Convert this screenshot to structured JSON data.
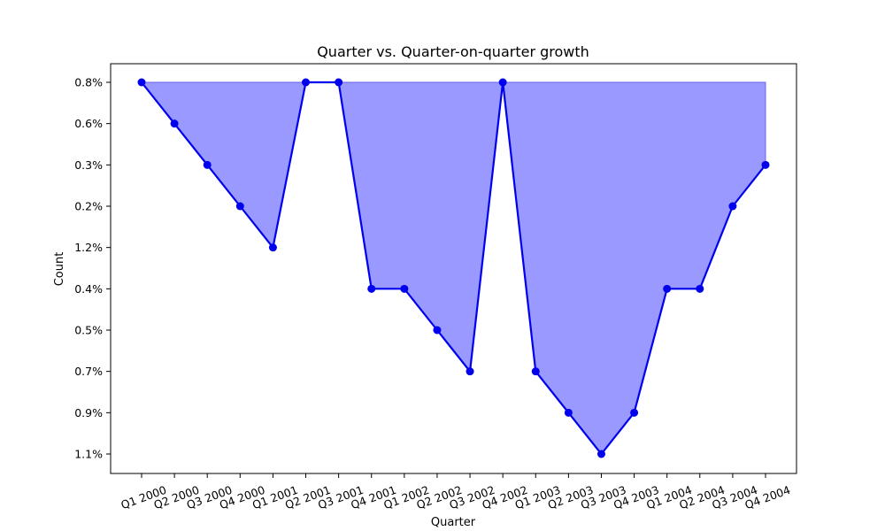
{
  "chart_data": {
    "type": "area",
    "title": "Quarter vs. Quarter-on-quarter growth",
    "xlabel": "Quarter",
    "ylabel": "Count",
    "y_categories": [
      "0.8%",
      "0.6%",
      "0.3%",
      "0.2%",
      "1.2%",
      "0.4%",
      "0.5%",
      "0.7%",
      "0.9%",
      "1.1%"
    ],
    "categories": [
      "Q1 2000",
      "Q2 2000",
      "Q3 2000",
      "Q4 2000",
      "Q1 2001",
      "Q2 2001",
      "Q3 2001",
      "Q4 2001",
      "Q1 2002",
      "Q2 2002",
      "Q3 2002",
      "Q4 2002",
      "Q1 2003",
      "Q2 2003",
      "Q3 2003",
      "Q4 2003",
      "Q1 2004",
      "Q2 2004",
      "Q3 2004",
      "Q4 2004"
    ],
    "values": [
      "0.8%",
      "0.6%",
      "0.3%",
      "0.2%",
      "1.2%",
      "0.8%",
      "0.8%",
      "0.4%",
      "0.4%",
      "0.5%",
      "0.7%",
      "0.8%",
      "0.7%",
      "0.9%",
      "1.1%",
      "0.9%",
      "0.4%",
      "0.4%",
      "0.2%",
      "0.3%"
    ],
    "fill_baseline": "0.8%",
    "colors": {
      "line": "#0000ee",
      "fill": "#9999ff"
    },
    "grid": false,
    "legend": "none"
  }
}
